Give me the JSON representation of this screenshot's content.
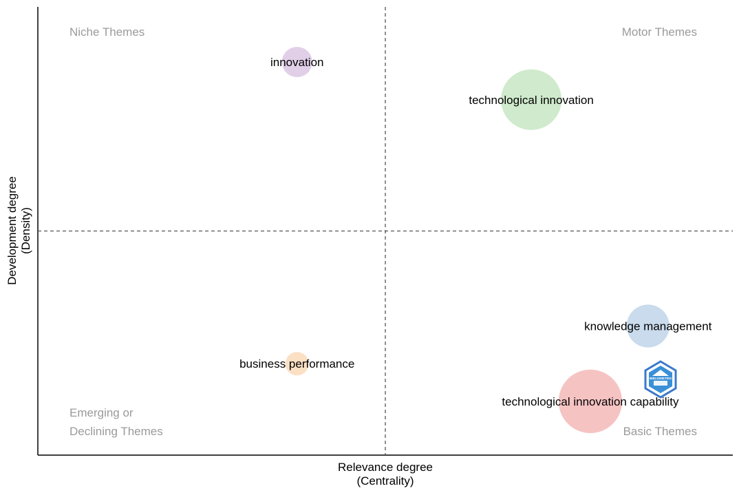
{
  "chart_data": {
    "type": "scatter",
    "subtype": "bubble",
    "xlabel": [
      "Relevance degree",
      "(Centrality)"
    ],
    "ylabel": [
      "Development degree",
      "(Density)"
    ],
    "xlim": [
      0,
      1
    ],
    "ylim": [
      0,
      1
    ],
    "x_reference": 0.5,
    "y_reference": 0.5,
    "grid": false,
    "quadrant_labels": {
      "top_left": [
        "Niche Themes"
      ],
      "top_right": [
        "Motor Themes"
      ],
      "bottom_left": [
        "Emerging or",
        "Declining Themes"
      ],
      "bottom_right": [
        "Basic Themes"
      ]
    },
    "points": [
      {
        "label": "innovation",
        "x": 0.373,
        "y": 0.877,
        "size": 1,
        "color": "#e1cfe8"
      },
      {
        "label": "technological innovation",
        "x": 0.71,
        "y": 0.793,
        "size": 4,
        "color": "#cfeacc"
      },
      {
        "label": "knowledge management",
        "x": 0.878,
        "y": 0.288,
        "size": 2,
        "color": "#c9dbec"
      },
      {
        "label": "business performance",
        "x": 0.373,
        "y": 0.204,
        "size": 0.6,
        "color": "#fce0c4"
      },
      {
        "label": "technological innovation capability",
        "x": 0.795,
        "y": 0.12,
        "size": 4.4,
        "color": "#f6c3c3"
      }
    ]
  },
  "watermark": {
    "text": "BIBLIOMETRIX"
  }
}
